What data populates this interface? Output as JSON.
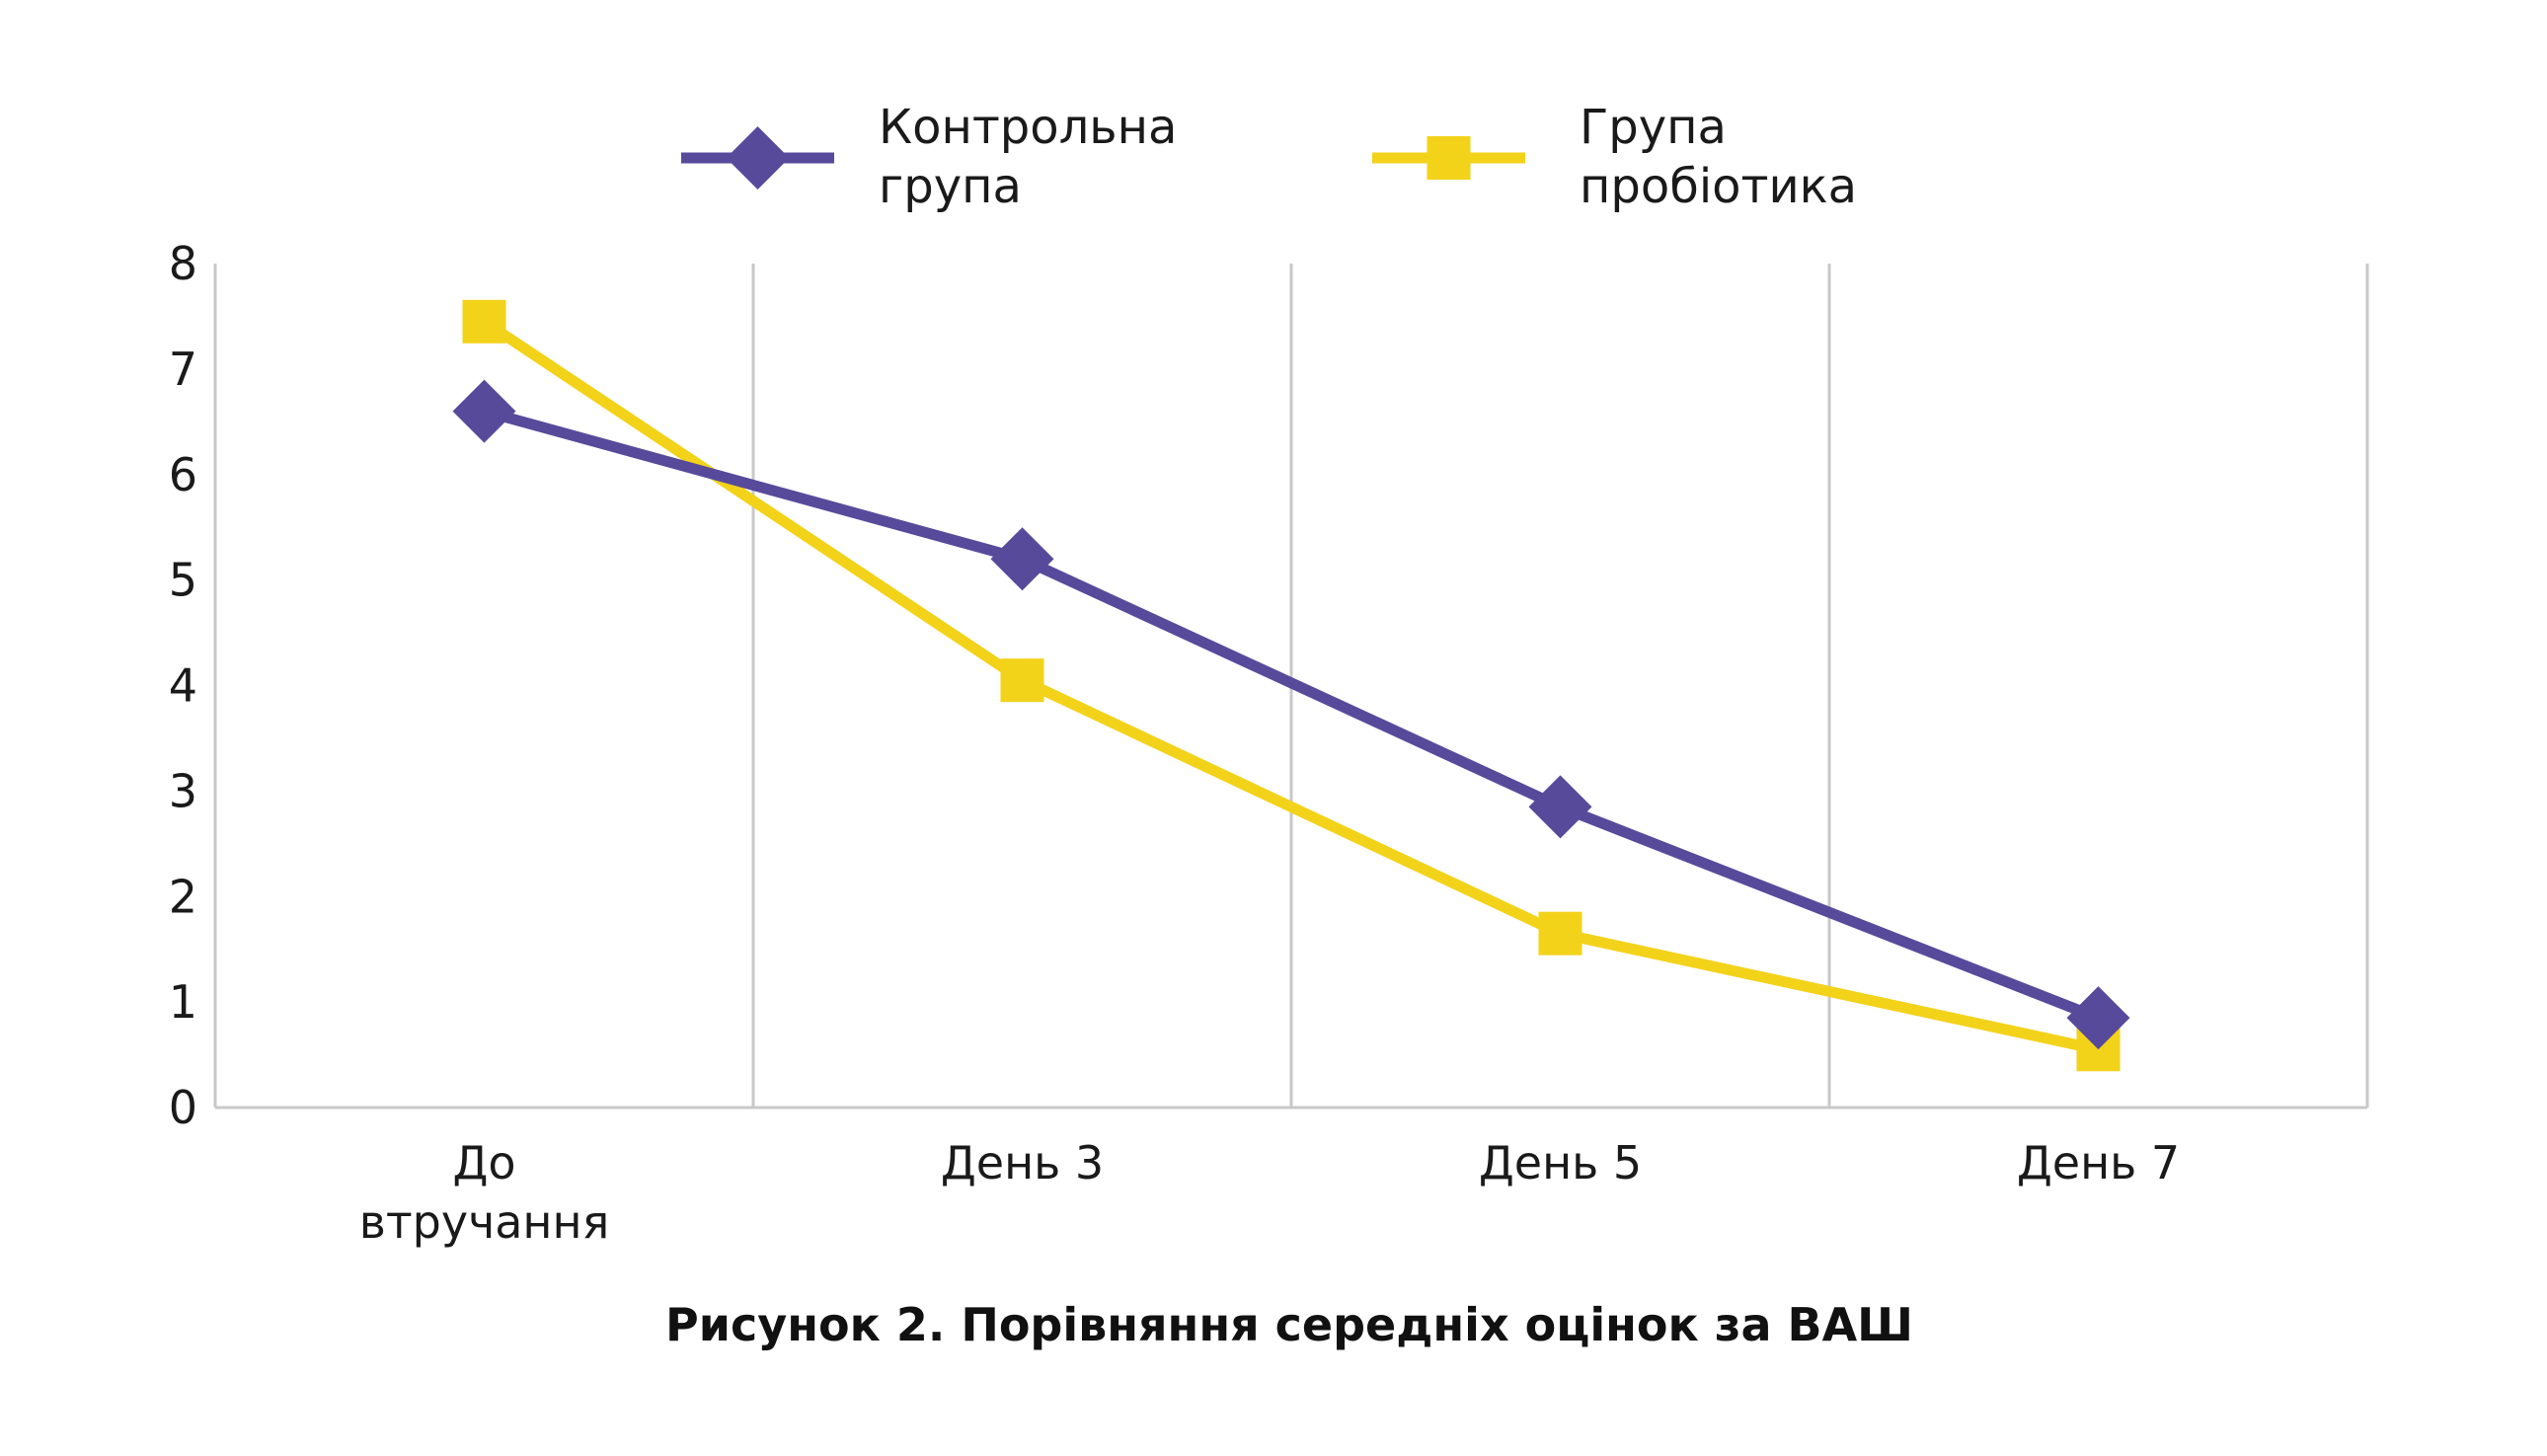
{
  "chart_data": {
    "type": "line",
    "title": "Рисунок 2. Порівняння середніх оцінок за ВАШ",
    "categories": [
      [
        "До",
        "втручання"
      ],
      [
        "День 3"
      ],
      [
        "День 5"
      ],
      [
        "День 7"
      ]
    ],
    "ylim": [
      0,
      8
    ],
    "yticks": [
      "0",
      "1",
      "2",
      "3",
      "4",
      "5",
      "6",
      "7",
      "8"
    ],
    "xlabel": "",
    "ylabel": "",
    "grid": "vertical",
    "legend_position": "top",
    "series": [
      {
        "name": [
          "Контрольна",
          "група"
        ],
        "values": [
          6.6,
          5.2,
          2.85,
          0.85
        ],
        "color": "#574a9b",
        "marker": "diamond"
      },
      {
        "name": [
          "Група",
          "пробіотика"
        ],
        "values": [
          7.45,
          4.05,
          1.65,
          0.55
        ],
        "color": "#f3d21a",
        "marker": "square"
      }
    ]
  }
}
